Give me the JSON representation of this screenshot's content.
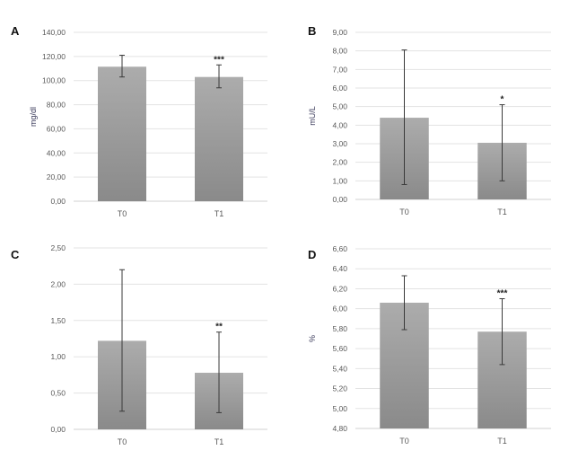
{
  "chart_data": [
    {
      "type": "bar",
      "panel_label": "A",
      "ylabel": "mg/dl",
      "categories": [
        "T0",
        "T1"
      ],
      "values": [
        111.5,
        103.0
      ],
      "error_low": [
        103.0,
        94.0
      ],
      "error_high": [
        121.0,
        113.0
      ],
      "significance": [
        "",
        "***"
      ],
      "ylim": [
        0,
        140
      ],
      "yticks": [
        "0,00",
        "20,00",
        "40,00",
        "60,00",
        "80,00",
        "100,00",
        "120,00",
        "140,00"
      ],
      "grid": true
    },
    {
      "type": "bar",
      "panel_label": "B",
      "ylabel": "mU/L",
      "categories": [
        "T0",
        "T1"
      ],
      "values": [
        4.4,
        3.05
      ],
      "error_low": [
        0.8,
        1.0
      ],
      "error_high": [
        8.05,
        5.1
      ],
      "significance": [
        "",
        "*"
      ],
      "ylim": [
        0,
        9
      ],
      "yticks": [
        "0,00",
        "1,00",
        "2,00",
        "3,00",
        "4,00",
        "5,00",
        "6,00",
        "7,00",
        "8,00",
        "9,00"
      ],
      "grid": true
    },
    {
      "type": "bar",
      "panel_label": "C",
      "ylabel": "",
      "categories": [
        "T0",
        "T1"
      ],
      "values": [
        1.22,
        0.78
      ],
      "error_low": [
        0.25,
        0.23
      ],
      "error_high": [
        2.2,
        1.34
      ],
      "significance": [
        "",
        "**"
      ],
      "ylim": [
        0,
        2.5
      ],
      "yticks": [
        "0,00",
        "0,50",
        "1,00",
        "1,50",
        "2,00",
        "2,50"
      ],
      "grid": true
    },
    {
      "type": "bar",
      "panel_label": "D",
      "ylabel": "%",
      "categories": [
        "T0",
        "T1"
      ],
      "values": [
        6.06,
        5.77
      ],
      "error_low": [
        5.79,
        5.44
      ],
      "error_high": [
        6.33,
        6.1
      ],
      "significance": [
        "",
        "***"
      ],
      "ylim": [
        4.8,
        6.6
      ],
      "yticks": [
        "4,80",
        "5,00",
        "5,20",
        "5,40",
        "5,60",
        "5,80",
        "6,00",
        "6,20",
        "6,40",
        "6,60"
      ],
      "grid": true
    }
  ],
  "colors": {
    "bar_top": "#acacac",
    "bar_bottom": "#8a8a8a",
    "grid": "#e3e3e3",
    "axis": "#d0d0d0",
    "error_bar": "#3a3a3a"
  }
}
